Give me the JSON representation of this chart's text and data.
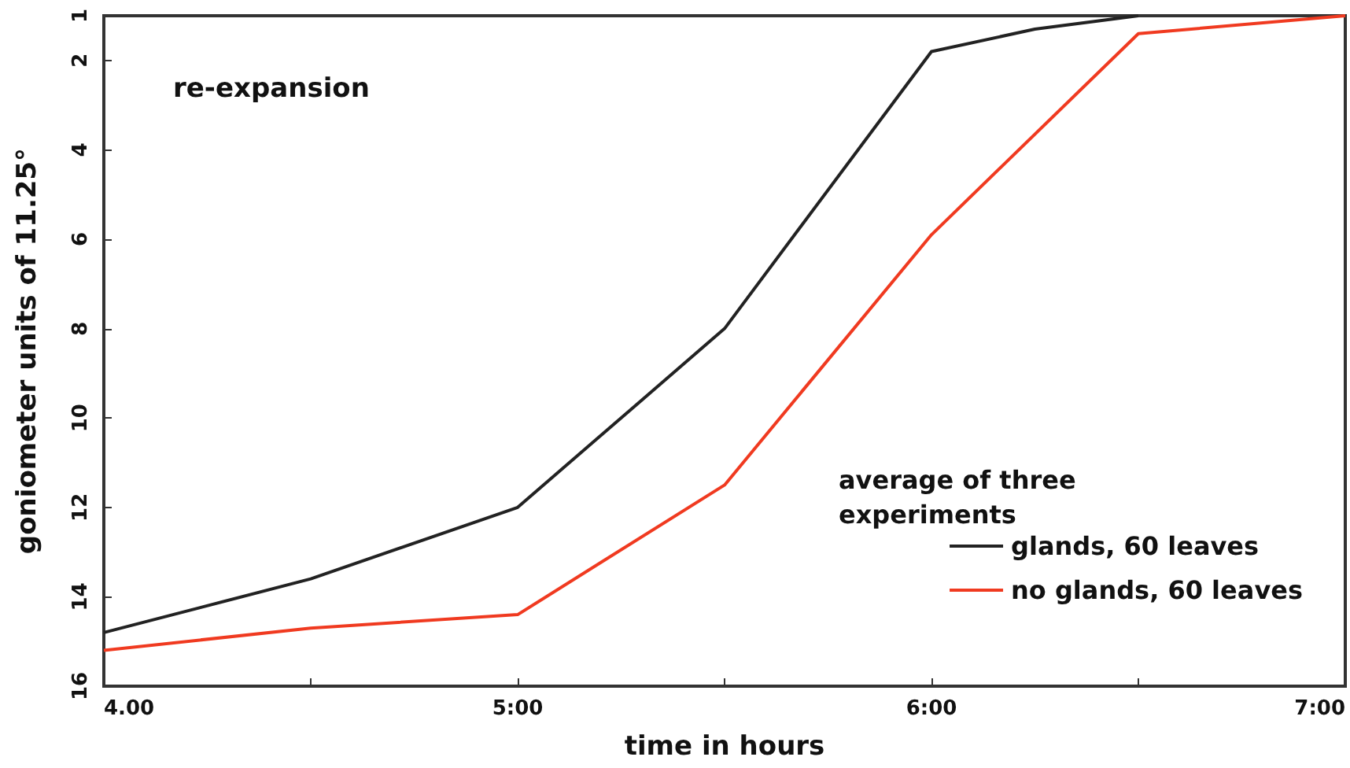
{
  "chart_data": {
    "type": "line",
    "xlabel": "time in hours",
    "ylabel": "goniometer units of 11.25°",
    "legend_title": "average of three experiments",
    "annotations": [
      "re-expansion"
    ],
    "series": [
      {
        "name": "glands, 60 leaves",
        "color": "#222222",
        "x": [
          4,
          4.5,
          5,
          5.5,
          6,
          6.25,
          6.5
        ],
        "values": [
          14.8,
          13.6,
          12.0,
          8.0,
          1.8,
          1.3,
          1.0
        ]
      },
      {
        "name": "no glands, 60 leaves",
        "color": "#f03a20",
        "x": [
          4,
          4.5,
          5,
          5.5,
          6,
          6.5,
          7
        ],
        "values": [
          15.2,
          14.7,
          14.4,
          11.5,
          5.9,
          1.4,
          1.0
        ]
      }
    ],
    "xlim": [
      4,
      7
    ],
    "xticks": [
      {
        "value": 4,
        "label": "4.00"
      },
      {
        "value": 4.5,
        "label": null
      },
      {
        "value": 5,
        "label": "5:00"
      },
      {
        "value": 5.5,
        "label": null
      },
      {
        "value": 6,
        "label": "6:00"
      },
      {
        "value": 6.5,
        "label": null
      },
      {
        "value": 7,
        "label": "7:00"
      }
    ],
    "ylim": [
      16,
      1
    ],
    "yticks": [
      1,
      2,
      4,
      6,
      8,
      10,
      12,
      14,
      16
    ],
    "grid": false,
    "legend": "bottom right",
    "marker": "none",
    "line_style": "solid"
  }
}
